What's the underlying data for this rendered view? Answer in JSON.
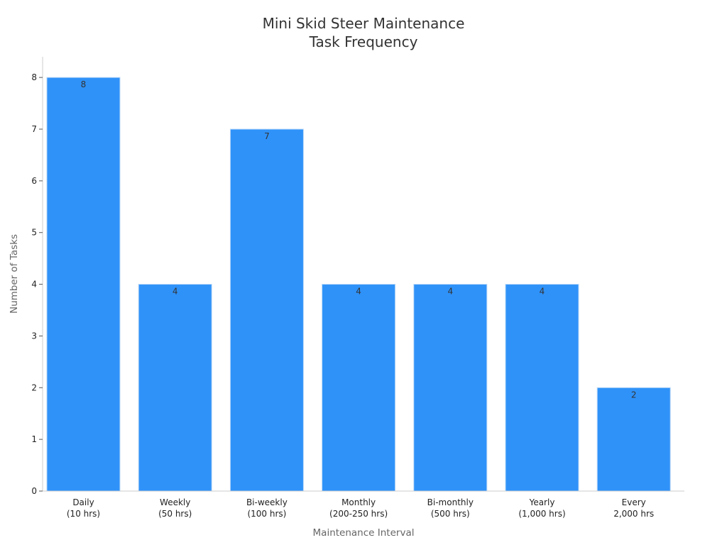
{
  "chart_data": {
    "type": "bar",
    "title": [
      "Mini Skid Steer Maintenance",
      "Task Frequency"
    ],
    "xlabel": "Maintenance Interval",
    "ylabel": "Number of Tasks",
    "categories": [
      [
        "Daily",
        "(10 hrs)"
      ],
      [
        "Weekly",
        "(50 hrs)"
      ],
      [
        "Bi-weekly",
        "(100 hrs)"
      ],
      [
        "Monthly",
        "(200-250 hrs)"
      ],
      [
        "Bi-monthly",
        "(500 hrs)"
      ],
      [
        "Yearly",
        "(1,000 hrs)"
      ],
      [
        "Every",
        "2,000 hrs"
      ]
    ],
    "values": [
      8,
      4,
      7,
      4,
      4,
      4,
      2
    ],
    "ylim": [
      0,
      8.4
    ],
    "yticks": [
      0,
      1,
      2,
      3,
      4,
      5,
      6,
      7,
      8
    ],
    "grid": false,
    "legend": "none",
    "colors": {
      "bar": "#2f92f9",
      "bar_edge": "#b9d8f7",
      "axis": "#cccccc"
    }
  }
}
